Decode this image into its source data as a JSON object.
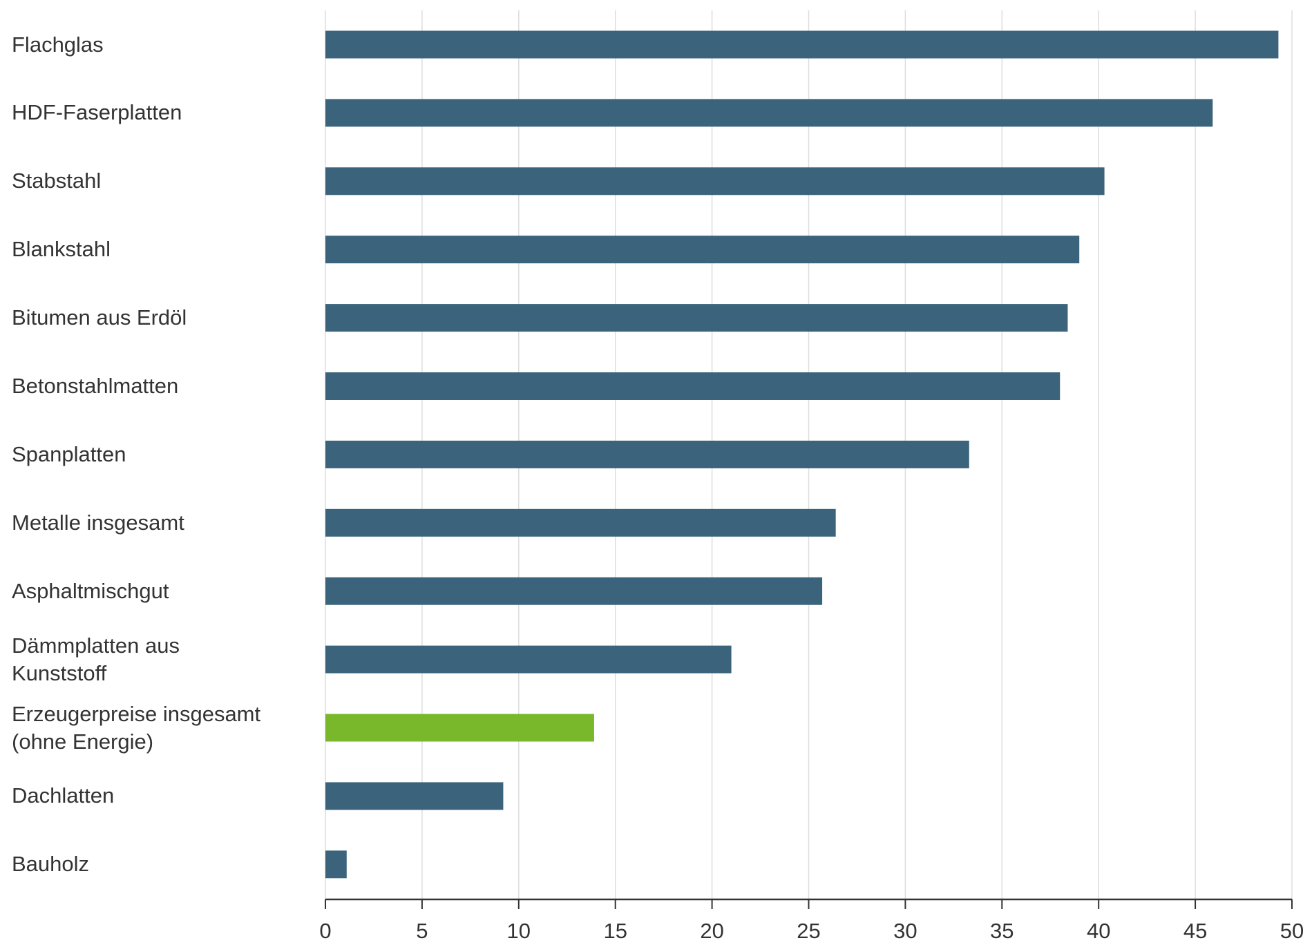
{
  "chart_data": {
    "type": "bar",
    "orientation": "horizontal",
    "title": "",
    "xlabel": "",
    "ylabel": "",
    "xlim": [
      0,
      50
    ],
    "xticks": [
      "0",
      "5",
      "10",
      "15",
      "20",
      "25",
      "30",
      "35",
      "40",
      "45",
      "50"
    ],
    "grid": "vertical",
    "categories": [
      [
        "Flachglas"
      ],
      [
        "HDF-Faserplatten"
      ],
      [
        "Stabstahl"
      ],
      [
        "Blankstahl"
      ],
      [
        "Bitumen aus Erdöl"
      ],
      [
        "Betonstahlmatten"
      ],
      [
        "Spanplatten"
      ],
      [
        "Metalle insgesamt"
      ],
      [
        "Asphaltmischgut"
      ],
      [
        "Dämmplatten aus",
        "Kunststoff"
      ],
      [
        "Erzeugerpreise insgesamt",
        "(ohne Energie)"
      ],
      [
        "Dachlatten"
      ],
      [
        "Bauholz"
      ]
    ],
    "values": [
      49.3,
      45.9,
      40.3,
      39.0,
      38.4,
      38.0,
      33.3,
      26.4,
      25.7,
      21.0,
      13.9,
      9.2,
      1.1
    ],
    "highlight_index": 10,
    "colors": {
      "default": "#3b637c",
      "highlight": "#78b82a",
      "grid": "#dddddd",
      "axis": "#333333"
    }
  }
}
